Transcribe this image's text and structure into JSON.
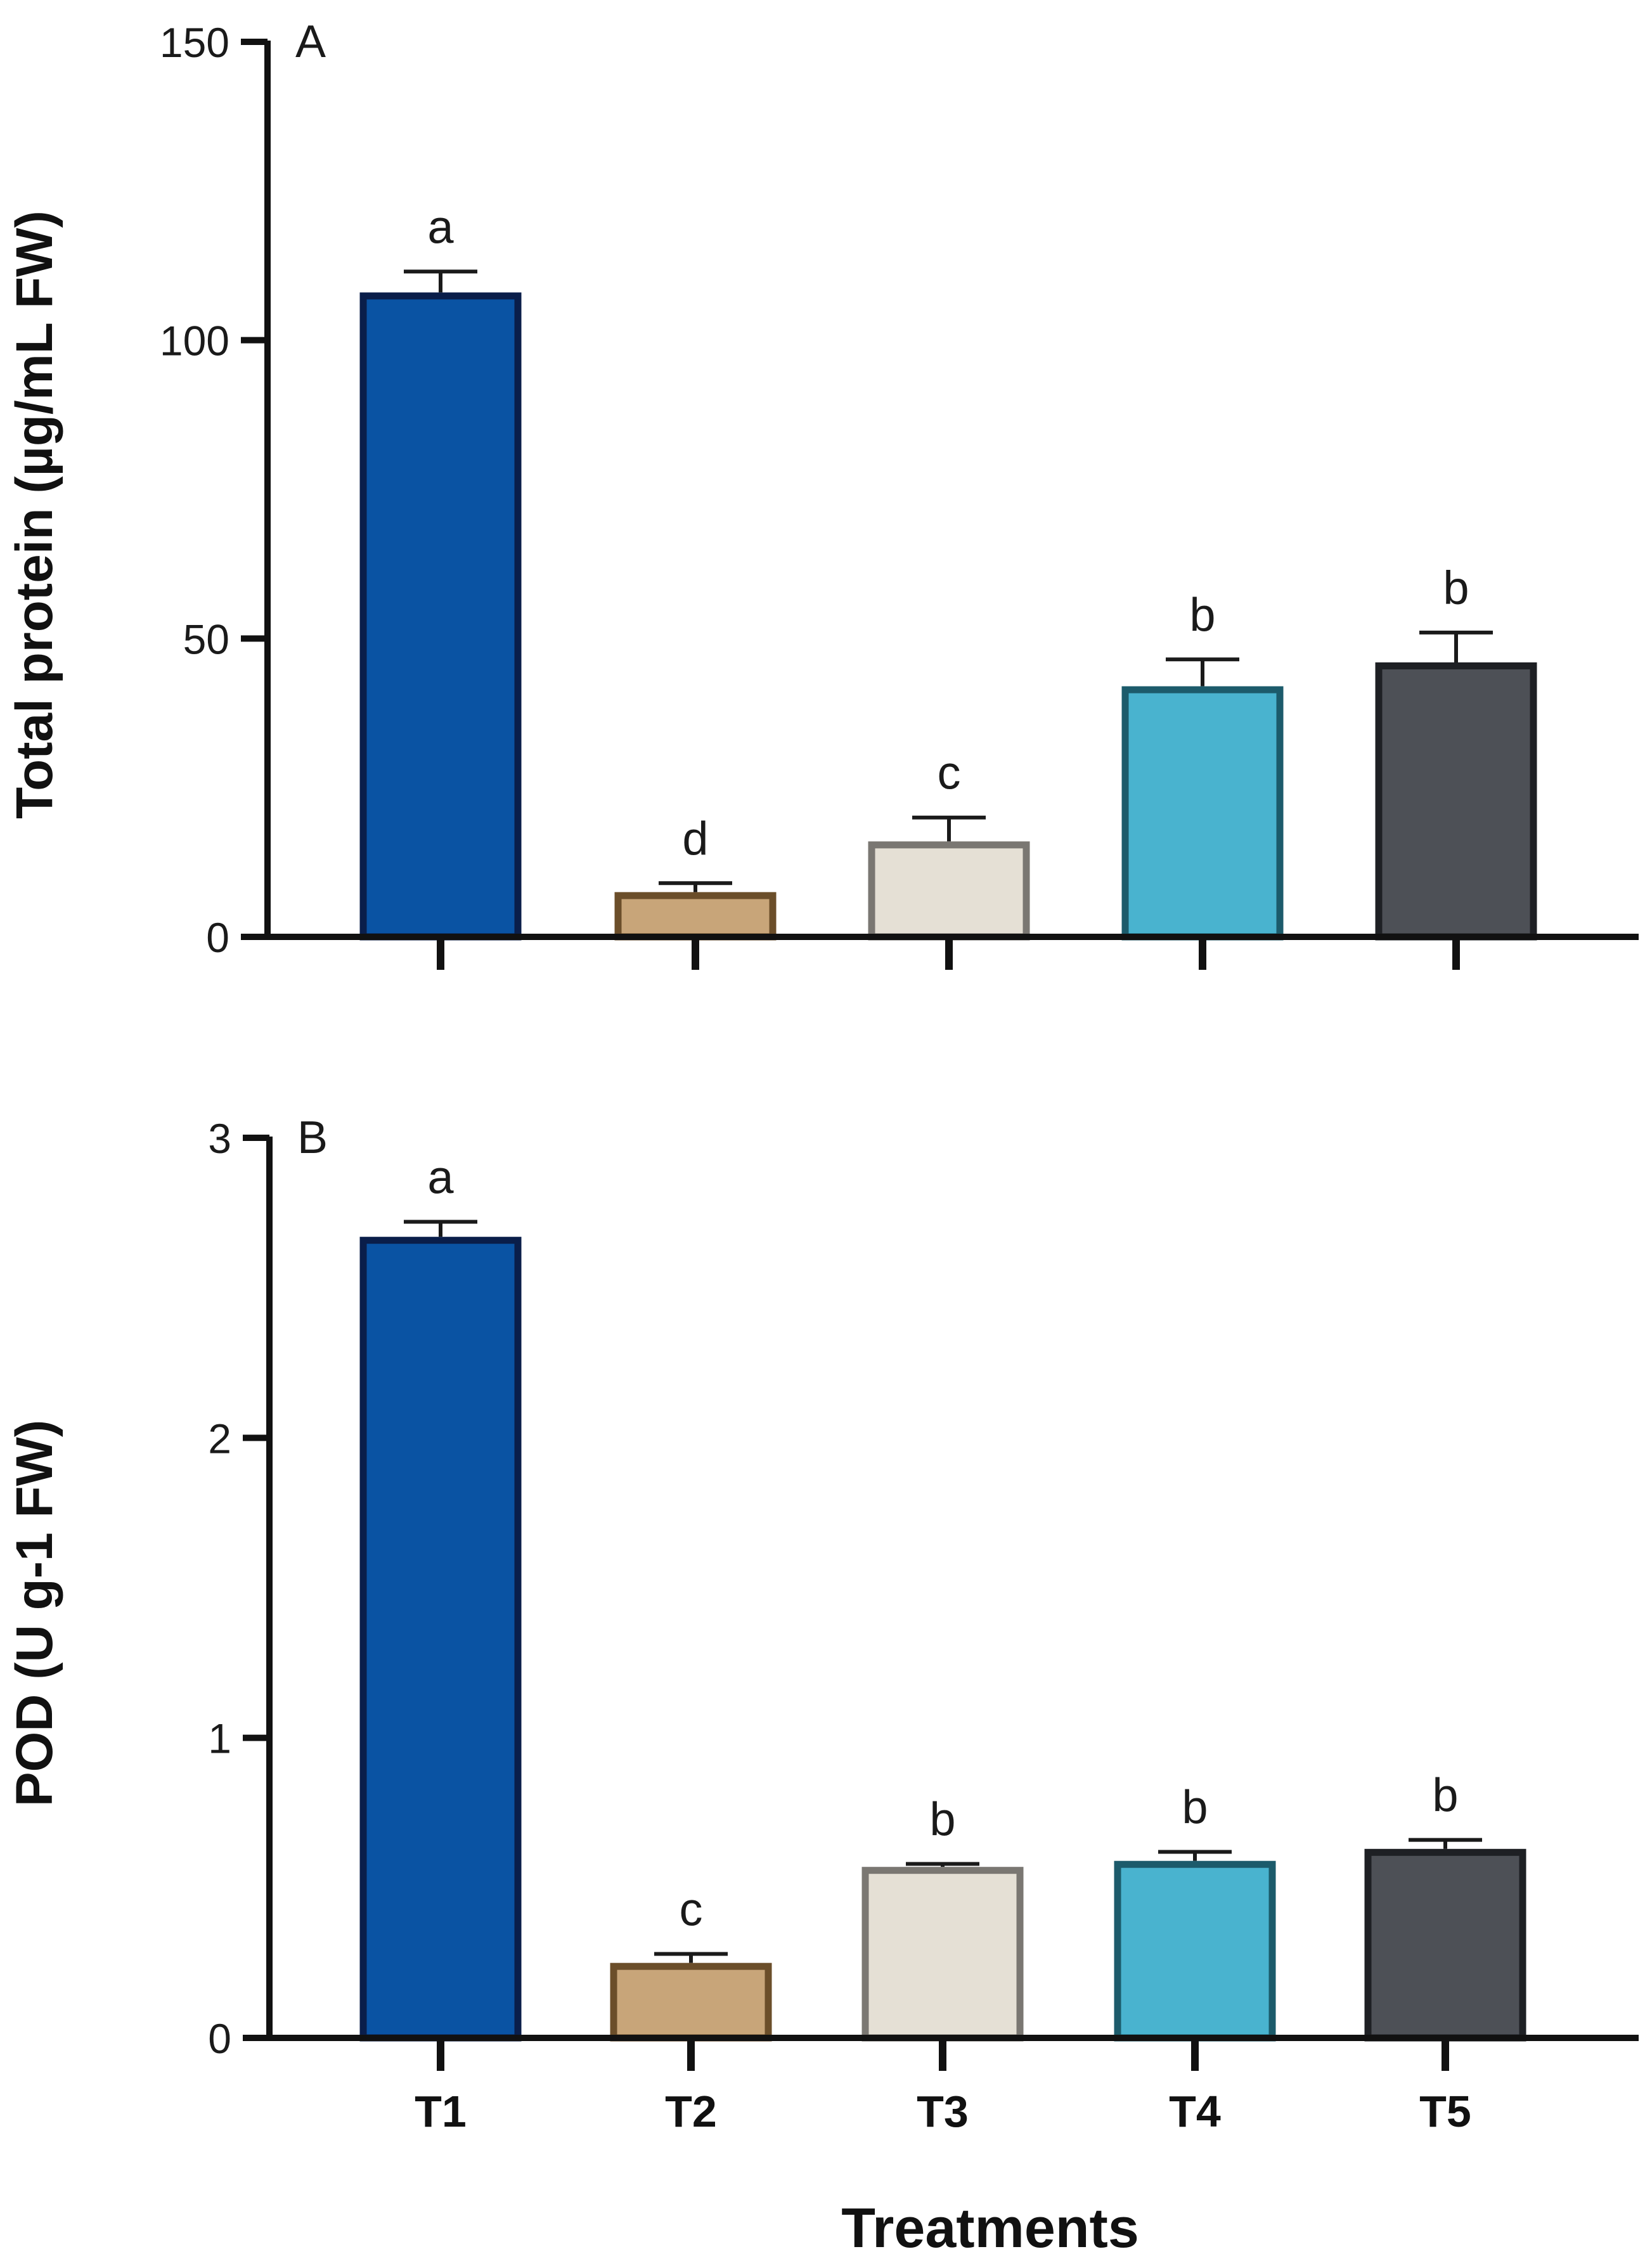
{
  "chart_data": [
    {
      "type": "bar",
      "panel_label": "A",
      "ylabel": "Total protein (µg/mL FW)",
      "xlabel": "",
      "ylim": [
        0,
        150
      ],
      "yticks": [
        0,
        50,
        100,
        150
      ],
      "categories": [
        "T1",
        "T2",
        "T3",
        "T4",
        "T5"
      ],
      "values": [
        108,
        7.5,
        16,
        42,
        46
      ],
      "errors": [
        3.5,
        1.5,
        4,
        4.5,
        5
      ],
      "significance": [
        "a",
        "d",
        "c",
        "b",
        "b"
      ],
      "fill_colors": [
        "#0a53a3",
        "#c8a579",
        "#e5e0d5",
        "#49b3cf",
        "#4d5056"
      ],
      "edge_colors": [
        "#0a1e4a",
        "#6b4e2a",
        "#7a7772",
        "#1c5b6b",
        "#1e2024"
      ]
    },
    {
      "type": "bar",
      "panel_label": "B",
      "ylabel": "POD (U g-1 FW)",
      "xlabel": "Treatments",
      "ylim": [
        0,
        3
      ],
      "yticks": [
        0,
        1,
        2,
        3
      ],
      "categories": [
        "T1",
        "T2",
        "T3",
        "T4",
        "T5"
      ],
      "values": [
        2.67,
        0.25,
        0.57,
        0.59,
        0.63
      ],
      "errors": [
        0.05,
        0.03,
        0.01,
        0.03,
        0.03
      ],
      "significance": [
        "a",
        "c",
        "b",
        "b",
        "b"
      ],
      "fill_colors": [
        "#0a53a3",
        "#c8a579",
        "#e5e0d5",
        "#49b3cf",
        "#4d5056"
      ],
      "edge_colors": [
        "#0a1e4a",
        "#6b4e2a",
        "#7a7772",
        "#1c5b6b",
        "#1e2024"
      ]
    }
  ]
}
